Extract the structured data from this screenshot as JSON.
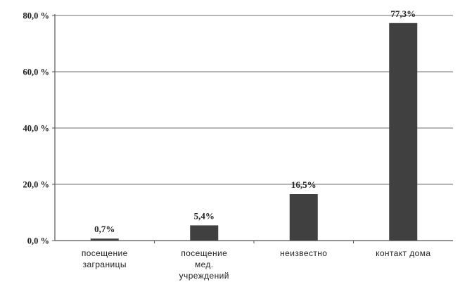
{
  "chart_data": {
    "type": "bar",
    "categories": [
      [
        "посещение",
        "заграницы"
      ],
      [
        "посещение",
        "мед.",
        "учреждений"
      ],
      [
        "неизвестно"
      ],
      [
        "контакт дома"
      ]
    ],
    "values": [
      0.7,
      5.4,
      16.5,
      77.3
    ],
    "data_labels": [
      "0,7%",
      "5,4%",
      "16,5%",
      "77,3%"
    ],
    "y_ticks": [
      0,
      20,
      40,
      60,
      80
    ],
    "y_tick_labels": [
      "0,0 %",
      "20,0 %",
      "40,0 %",
      "60,0 %",
      "80,0 %"
    ],
    "ylim": [
      0,
      80
    ],
    "grid": true,
    "legend": "none",
    "bar_color": "#404040",
    "grid_color": "#8a8a8a"
  }
}
